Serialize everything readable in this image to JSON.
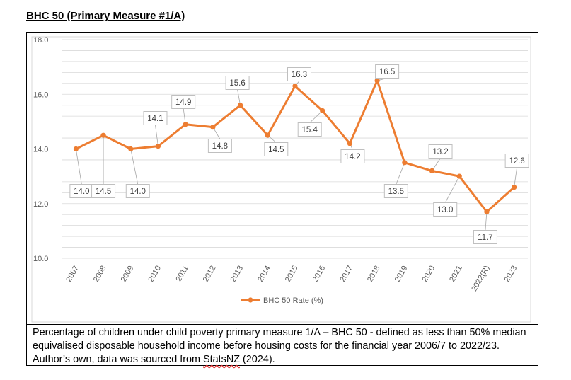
{
  "heading": "BHC 50 (Primary Measure #1/A)",
  "caption": {
    "before": "Percentage of children under child poverty primary measure 1/A – BHC 50 - defined as less than 50% median equivalised disposable household income before housing costs for the financial year 2006/7 to 2022/23. Author’s own, data was sourced from ",
    "source": "StatsNZ",
    "after": " (2024)."
  },
  "colors": {
    "series": "#ED7D31",
    "grid": "#d9d9d9",
    "axis_text": "#595959"
  },
  "chart_data": {
    "type": "line",
    "categories": [
      "2007",
      "2008",
      "2009",
      "2010",
      "2011",
      "2012",
      "2013",
      "2014",
      "2015",
      "2016",
      "2017",
      "2018",
      "2019",
      "2020",
      "2021",
      "2022(R)",
      "2023"
    ],
    "series": [
      {
        "name": "BHC 50 Rate (%)",
        "values": [
          14.0,
          14.5,
          14.0,
          14.1,
          14.9,
          14.8,
          15.6,
          14.5,
          16.3,
          15.4,
          14.2,
          16.5,
          13.5,
          13.2,
          13.0,
          11.7,
          12.6
        ]
      }
    ],
    "data_labels": [
      "14.0",
      "14.5",
      "14.0",
      "14.1",
      "14.9",
      "14.8",
      "15.6",
      "14.5",
      "16.3",
      "15.4",
      "14.2",
      "16.5",
      "13.5",
      "13.2",
      "13.0",
      "11.7",
      "12.6"
    ],
    "y_ticks": [
      "10.0",
      "12.0",
      "14.0",
      "16.0",
      "18.0"
    ],
    "ylim": [
      10,
      18
    ],
    "minor_gridline_step": 0.4,
    "grid": true,
    "legend_position": "bottom",
    "title": "",
    "xlabel": "",
    "ylabel": ""
  }
}
